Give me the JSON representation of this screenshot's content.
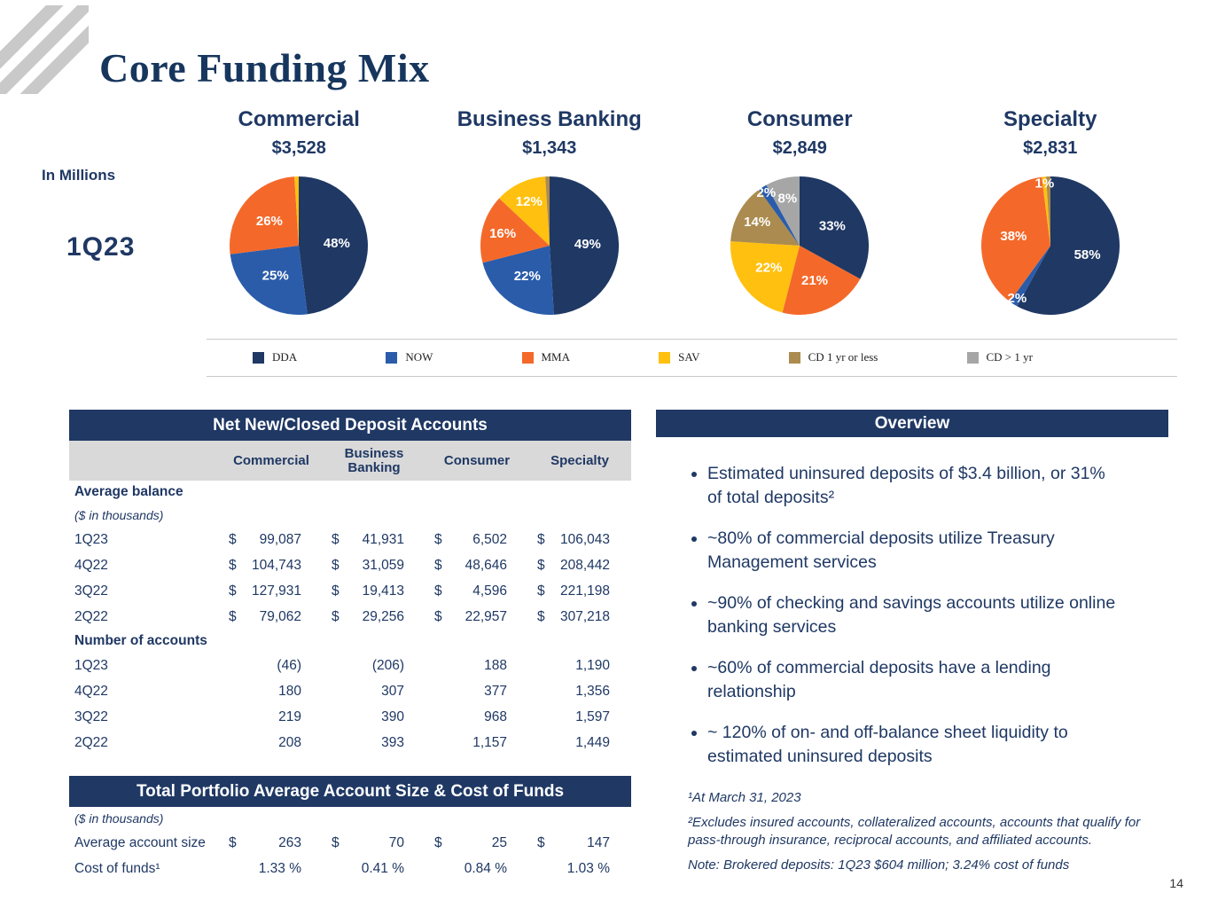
{
  "title": "Core Funding Mix",
  "page_number": "14",
  "chart_data": {
    "type": "pie",
    "unit": "In Millions",
    "period": "1Q23",
    "legend": [
      {
        "label": "DDA",
        "color": "#1f3864"
      },
      {
        "label": "NOW",
        "color": "#2a5caa"
      },
      {
        "label": "MMA",
        "color": "#f4692a"
      },
      {
        "label": "SAV",
        "color": "#ffc010"
      },
      {
        "label": "CD 1 yr or less",
        "color": "#ab8b4f"
      },
      {
        "label": "CD > 1 yr",
        "color": "#a6a6a6"
      }
    ],
    "pies": [
      {
        "title": "Commercial",
        "total": "$3,528",
        "slices": [
          {
            "category": "DDA",
            "pct": 48,
            "label": "48%"
          },
          {
            "category": "NOW",
            "pct": 25,
            "label": "25%"
          },
          {
            "category": "MMA",
            "pct": 26,
            "label": "26%"
          },
          {
            "category": "SAV",
            "pct": 1,
            "label": ""
          }
        ]
      },
      {
        "title": "Business Banking",
        "total": "$1,343",
        "slices": [
          {
            "category": "DDA",
            "pct": 49,
            "label": "49%"
          },
          {
            "category": "NOW",
            "pct": 22,
            "label": "22%"
          },
          {
            "category": "MMA",
            "pct": 16,
            "label": "16%"
          },
          {
            "category": "SAV",
            "pct": 12,
            "label": "12%"
          },
          {
            "category": "CD 1 yr or less",
            "pct": 1,
            "label": ""
          }
        ]
      },
      {
        "title": "Consumer",
        "total": "$2,849",
        "slices": [
          {
            "category": "DDA",
            "pct": 33,
            "label": "33%"
          },
          {
            "category": "MMA",
            "pct": 21,
            "label": "21%"
          },
          {
            "category": "SAV",
            "pct": 22,
            "label": "22%"
          },
          {
            "category": "CD 1 yr or less",
            "pct": 14,
            "label": "14%"
          },
          {
            "category": "NOW",
            "pct": 2,
            "label": "2%"
          },
          {
            "category": "CD > 1 yr",
            "pct": 8,
            "label": "8%"
          }
        ]
      },
      {
        "title": "Specialty",
        "total": "$2,831",
        "slices": [
          {
            "category": "DDA",
            "pct": 58,
            "label": "58%"
          },
          {
            "category": "NOW",
            "pct": 2,
            "label": "2%"
          },
          {
            "category": "MMA",
            "pct": 38,
            "label": "38%"
          },
          {
            "category": "SAV",
            "pct": 1,
            "label": "1%"
          },
          {
            "category": "CD 1 yr or less",
            "pct": 1,
            "label": ""
          }
        ]
      }
    ]
  },
  "net_table": {
    "title": "Net New/Closed Deposit Accounts",
    "columns": [
      "Commercial",
      "Business Banking",
      "Consumer",
      "Specialty"
    ],
    "sections": [
      {
        "heading": "Average balance",
        "subheading": "($ in thousands)",
        "dollar": true,
        "rows": [
          {
            "label": "1Q23",
            "values": [
              "99,087",
              "41,931",
              "6,502",
              "106,043"
            ]
          },
          {
            "label": "4Q22",
            "values": [
              "104,743",
              "31,059",
              "48,646",
              "208,442"
            ]
          },
          {
            "label": "3Q22",
            "values": [
              "127,931",
              "19,413",
              "4,596",
              "221,198"
            ]
          },
          {
            "label": "2Q22",
            "values": [
              "79,062",
              "29,256",
              "22,957",
              "307,218"
            ]
          }
        ]
      },
      {
        "heading": "Number of accounts",
        "dollar": false,
        "rows": [
          {
            "label": "1Q23",
            "values": [
              "(46)",
              "(206)",
              "188",
              "1,190"
            ]
          },
          {
            "label": "4Q22",
            "values": [
              "180",
              "307",
              "377",
              "1,356"
            ]
          },
          {
            "label": "3Q22",
            "values": [
              "219",
              "390",
              "968",
              "1,597"
            ]
          },
          {
            "label": "2Q22",
            "values": [
              "208",
              "393",
              "1,157",
              "1,449"
            ]
          }
        ]
      }
    ]
  },
  "portfolio_table": {
    "title": "Total Portfolio Average Account Size & Cost of Funds",
    "subheading": "($ in thousands)",
    "rows": [
      {
        "label": "Average account size",
        "dollar": true,
        "values": [
          "263",
          "70",
          "25",
          "147"
        ]
      },
      {
        "label": "Cost of funds¹",
        "dollar": false,
        "values": [
          "1.33 %",
          "0.41 %",
          "0.84 %",
          "1.03 %"
        ]
      }
    ]
  },
  "overview": {
    "title": "Overview",
    "bullets": [
      "Estimated uninsured deposits of $3.4 billion, or 31% of total deposits²",
      "~80% of commercial deposits utilize Treasury Management services",
      "~90% of checking and savings accounts utilize online banking services",
      "~60% of commercial deposits have a lending relationship",
      "~ 120% of on- and off-balance sheet liquidity to estimated uninsured deposits"
    ]
  },
  "footnotes": [
    "¹At March 31, 2023",
    "²Excludes insured accounts, collateralized accounts, accounts that qualify for pass-through insurance, reciprocal accounts, and affiliated accounts.",
    "Note: Brokered deposits: 1Q23 $604 million; 3.24% cost of funds"
  ]
}
